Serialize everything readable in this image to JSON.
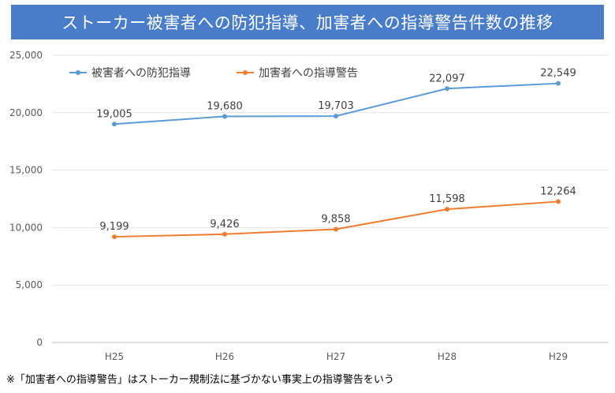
{
  "chart_data": {
    "type": "line",
    "title": "ストーカー被害者への防犯指導、加害者への指導警告件数の推移",
    "categories": [
      "H25",
      "H26",
      "H27",
      "H28",
      "H29"
    ],
    "ylim": [
      0,
      25000
    ],
    "yticks": [
      0,
      5000,
      10000,
      15000,
      20000,
      25000
    ],
    "grid": true,
    "legend_position": "top-left",
    "series": [
      {
        "name": "被害者への防犯指導",
        "color": "#5b9bd5",
        "values": [
          19005,
          19680,
          19703,
          22097,
          22549
        ]
      },
      {
        "name": "加害者への指導警告",
        "color": "#ed7d31",
        "values": [
          9199,
          9426,
          9858,
          11598,
          12264
        ]
      }
    ]
  },
  "footnote": "※「加害者への指導警告」はストーカー規制法に基づかない事実上の指導警告をいう"
}
